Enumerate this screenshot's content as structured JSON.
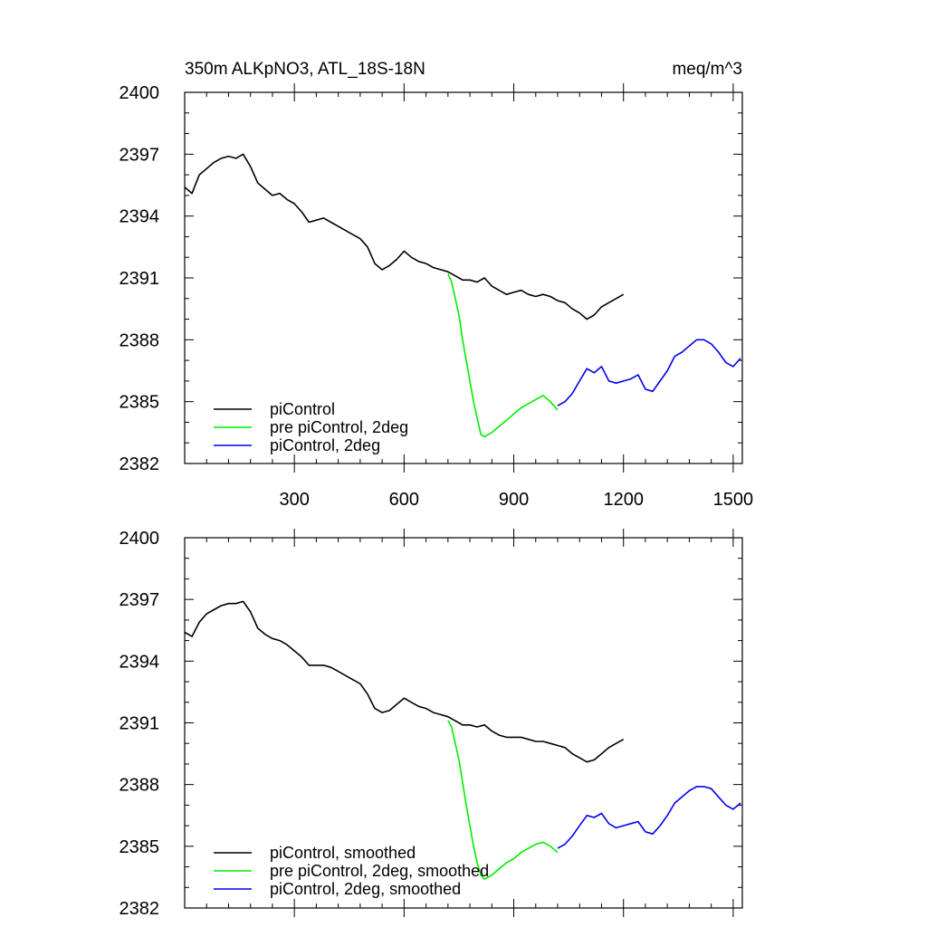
{
  "chart_data": [
    {
      "type": "line",
      "title": "350m ALKpNO3, ATL_18S-18N",
      "units": "meq/m^3",
      "xlabel": "",
      "ylabel": "",
      "xlim": [
        0,
        1525
      ],
      "ylim": [
        2382,
        2400
      ],
      "xticks": [
        300,
        600,
        900,
        1200,
        1500
      ],
      "yticks": [
        2382,
        2385,
        2388,
        2391,
        2394,
        2397,
        2400
      ],
      "legend_position": "bottom-left",
      "series": [
        {
          "name": "piControl",
          "color": "#000000",
          "x": [
            0,
            20,
            40,
            60,
            80,
            100,
            120,
            140,
            160,
            180,
            200,
            220,
            240,
            260,
            280,
            300,
            320,
            340,
            360,
            380,
            400,
            420,
            440,
            460,
            480,
            500,
            520,
            540,
            560,
            580,
            600,
            620,
            640,
            660,
            680,
            700,
            720,
            740,
            760,
            780,
            800,
            820,
            840,
            860,
            880,
            900,
            920,
            940,
            960,
            980,
            1000,
            1020,
            1040,
            1060,
            1080,
            1100,
            1120,
            1140,
            1160,
            1180,
            1200
          ],
          "y": [
            2395.4,
            2395.1,
            2396.0,
            2396.3,
            2396.6,
            2396.8,
            2396.9,
            2396.8,
            2397.0,
            2396.4,
            2395.6,
            2395.3,
            2395.0,
            2395.1,
            2394.8,
            2394.6,
            2394.2,
            2393.7,
            2393.8,
            2393.9,
            2393.7,
            2393.5,
            2393.3,
            2393.1,
            2392.9,
            2392.5,
            2391.7,
            2391.4,
            2391.6,
            2391.9,
            2392.3,
            2392.0,
            2391.8,
            2391.7,
            2391.5,
            2391.4,
            2391.3,
            2391.1,
            2390.9,
            2390.9,
            2390.8,
            2391.0,
            2390.6,
            2390.4,
            2390.2,
            2390.3,
            2390.4,
            2390.2,
            2390.1,
            2390.2,
            2390.1,
            2389.9,
            2389.8,
            2389.5,
            2389.3,
            2389.0,
            2389.2,
            2389.6,
            2389.8,
            2390.0,
            2390.2
          ]
        },
        {
          "name": "pre piControl, 2deg",
          "color": "#00ee00",
          "x": [
            720,
            730,
            740,
            750,
            760,
            770,
            780,
            790,
            800,
            810,
            820,
            840,
            860,
            880,
            900,
            920,
            940,
            960,
            980,
            1000,
            1020
          ],
          "y": [
            2391.2,
            2390.8,
            2390.0,
            2389.2,
            2388.0,
            2387.0,
            2386.0,
            2385.0,
            2384.2,
            2383.4,
            2383.3,
            2383.5,
            2383.8,
            2384.1,
            2384.4,
            2384.7,
            2384.9,
            2385.1,
            2385.3,
            2385.0,
            2384.6
          ]
        },
        {
          "name": "piControl, 2deg",
          "color": "#0000ee",
          "x": [
            1020,
            1040,
            1060,
            1080,
            1100,
            1120,
            1140,
            1160,
            1180,
            1200,
            1220,
            1240,
            1260,
            1280,
            1300,
            1320,
            1340,
            1360,
            1380,
            1400,
            1420,
            1440,
            1460,
            1480,
            1500,
            1520
          ],
          "y": [
            2384.8,
            2385.0,
            2385.4,
            2386.0,
            2386.6,
            2386.4,
            2386.7,
            2386.0,
            2385.9,
            2386.0,
            2386.1,
            2386.3,
            2385.6,
            2385.5,
            2386.0,
            2386.5,
            2387.2,
            2387.4,
            2387.7,
            2388.0,
            2388.0,
            2387.8,
            2387.4,
            2386.9,
            2386.7,
            2387.1
          ]
        }
      ]
    },
    {
      "type": "line",
      "title": "",
      "units": "",
      "xlabel": "",
      "ylabel": "",
      "xlim": [
        0,
        1525
      ],
      "ylim": [
        2382,
        2400
      ],
      "xticks": [
        300,
        600,
        900,
        1200,
        1500
      ],
      "show_xtick_labels": false,
      "yticks": [
        2382,
        2385,
        2388,
        2391,
        2394,
        2397,
        2400
      ],
      "legend_position": "bottom-left",
      "series": [
        {
          "name": "piControl, smoothed",
          "color": "#000000",
          "x": [
            0,
            20,
            40,
            60,
            80,
            100,
            120,
            140,
            160,
            180,
            200,
            220,
            240,
            260,
            280,
            300,
            320,
            340,
            360,
            380,
            400,
            420,
            440,
            460,
            480,
            500,
            520,
            540,
            560,
            580,
            600,
            620,
            640,
            660,
            680,
            700,
            720,
            740,
            760,
            780,
            800,
            820,
            840,
            860,
            880,
            900,
            920,
            940,
            960,
            980,
            1000,
            1020,
            1040,
            1060,
            1080,
            1100,
            1120,
            1140,
            1160,
            1180,
            1200
          ],
          "y": [
            2395.4,
            2395.2,
            2395.9,
            2396.3,
            2396.5,
            2396.7,
            2396.8,
            2396.8,
            2396.9,
            2396.4,
            2395.6,
            2395.3,
            2395.1,
            2395.0,
            2394.8,
            2394.5,
            2394.2,
            2393.8,
            2393.8,
            2393.8,
            2393.7,
            2393.5,
            2393.3,
            2393.1,
            2392.9,
            2392.4,
            2391.7,
            2391.5,
            2391.6,
            2391.9,
            2392.2,
            2392.0,
            2391.8,
            2391.7,
            2391.5,
            2391.4,
            2391.3,
            2391.1,
            2390.9,
            2390.9,
            2390.8,
            2390.9,
            2390.6,
            2390.4,
            2390.3,
            2390.3,
            2390.3,
            2390.2,
            2390.1,
            2390.1,
            2390.0,
            2389.9,
            2389.8,
            2389.5,
            2389.3,
            2389.1,
            2389.2,
            2389.5,
            2389.8,
            2390.0,
            2390.2
          ]
        },
        {
          "name": "pre piControl, 2deg, smoothed",
          "color": "#00ee00",
          "x": [
            720,
            730,
            740,
            750,
            760,
            770,
            780,
            790,
            800,
            810,
            820,
            840,
            860,
            880,
            900,
            920,
            940,
            960,
            980,
            1000,
            1020
          ],
          "y": [
            2391.1,
            2390.8,
            2390.0,
            2389.2,
            2388.1,
            2387.0,
            2386.0,
            2385.0,
            2384.2,
            2383.6,
            2383.4,
            2383.6,
            2383.9,
            2384.2,
            2384.4,
            2384.7,
            2384.9,
            2385.1,
            2385.2,
            2385.0,
            2384.7
          ]
        },
        {
          "name": "piControl, 2deg, smoothed",
          "color": "#0000ee",
          "x": [
            1020,
            1040,
            1060,
            1080,
            1100,
            1120,
            1140,
            1160,
            1180,
            1200,
            1220,
            1240,
            1260,
            1280,
            1300,
            1320,
            1340,
            1360,
            1380,
            1400,
            1420,
            1440,
            1460,
            1480,
            1500,
            1520
          ],
          "y": [
            2384.9,
            2385.1,
            2385.5,
            2386.0,
            2386.5,
            2386.4,
            2386.6,
            2386.1,
            2385.9,
            2386.0,
            2386.1,
            2386.2,
            2385.7,
            2385.6,
            2386.0,
            2386.5,
            2387.1,
            2387.4,
            2387.7,
            2387.9,
            2387.9,
            2387.8,
            2387.4,
            2387.0,
            2386.8,
            2387.1
          ]
        }
      ]
    }
  ]
}
